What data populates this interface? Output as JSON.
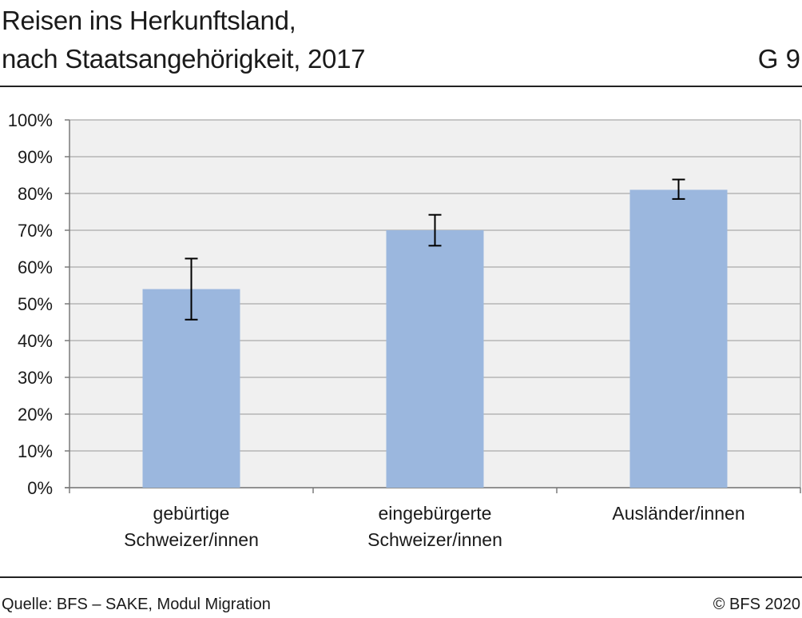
{
  "header": {
    "title_line1": "Reisen ins Herkunftsland,",
    "title_line2": "nach Staatsangehörigkeit, 2017",
    "chart_id": "G 9"
  },
  "footer": {
    "source": "Quelle: BFS – SAKE, Modul Migration",
    "copyright": "© BFS 2020"
  },
  "chart_data": {
    "type": "bar",
    "categories": [
      [
        "gebürtige",
        "Schweizer/innen"
      ],
      [
        "eingebürgerte",
        "Schweizer/innen"
      ],
      [
        "Ausländer/innen"
      ]
    ],
    "values": [
      54,
      70,
      81
    ],
    "error_low": [
      45.7,
      65.8,
      78.5
    ],
    "error_high": [
      62.3,
      74.2,
      83.8
    ],
    "y_ticks": [
      "0%",
      "10%",
      "20%",
      "30%",
      "40%",
      "50%",
      "60%",
      "70%",
      "80%",
      "90%",
      "100%"
    ],
    "ylim": [
      0,
      100
    ],
    "grid": true,
    "colors": {
      "bar": "#9bb7de",
      "plot_background": "#f0f0f0",
      "grid": "#b5b5b5",
      "error_bar": "#000000"
    }
  }
}
